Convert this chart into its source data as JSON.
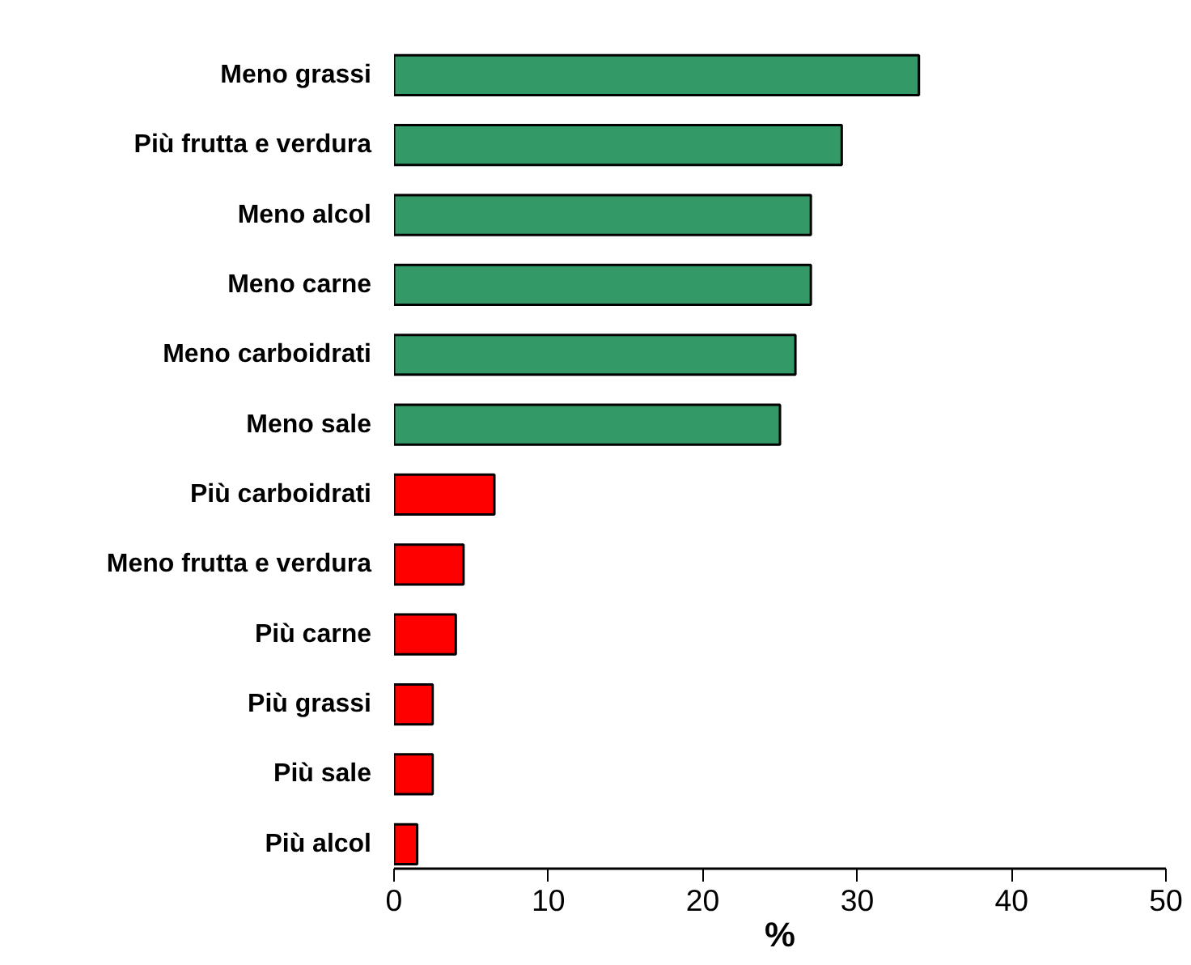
{
  "chart_data": {
    "type": "bar",
    "orientation": "horizontal",
    "categories": [
      "Meno grassi",
      "Più frutta e verdura",
      "Meno alcol",
      "Meno carne",
      "Meno carboidrati",
      "Meno sale",
      "Più carboidrati",
      "Meno frutta e verdura",
      "Più carne",
      "Più grassi",
      "Più sale",
      "Più alcol"
    ],
    "values": [
      34,
      29,
      27,
      27,
      26,
      25,
      6.5,
      4.5,
      4,
      2.5,
      2.5,
      1.5
    ],
    "colors": [
      "#339966",
      "#339966",
      "#339966",
      "#339966",
      "#339966",
      "#339966",
      "#ff0000",
      "#ff0000",
      "#ff0000",
      "#ff0000",
      "#ff0000",
      "#ff0000"
    ],
    "xlim": [
      0,
      50
    ],
    "xticks": [
      0,
      10,
      20,
      30,
      40,
      50
    ],
    "xlabel": "%",
    "grid": false
  }
}
